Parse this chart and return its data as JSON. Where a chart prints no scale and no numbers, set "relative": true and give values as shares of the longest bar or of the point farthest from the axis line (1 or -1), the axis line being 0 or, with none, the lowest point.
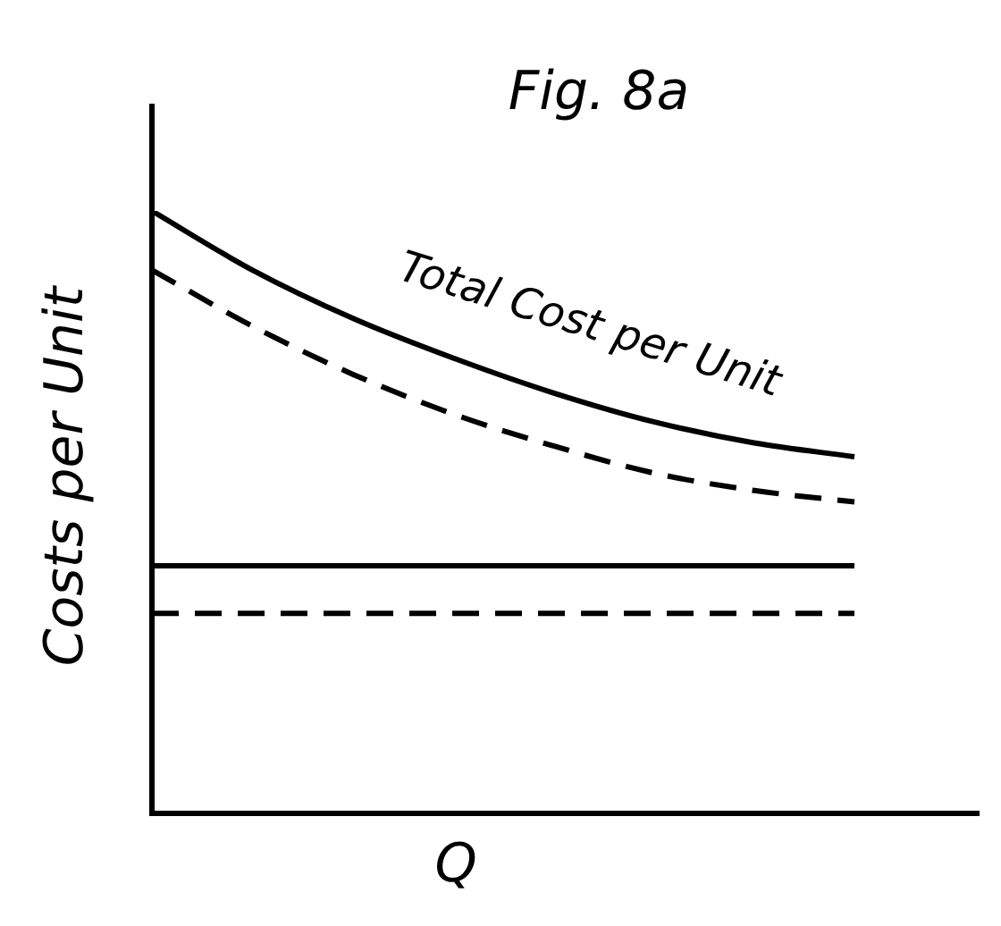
{
  "chart_data": {
    "type": "line",
    "title": "Fig. 8a",
    "xlabel": "Q",
    "ylabel": "Costs per Unit",
    "relative": true,
    "categories": [
      null,
      null,
      null,
      null,
      null,
      null,
      null,
      null
    ],
    "series": [
      {
        "name": "Total Cost per Unit",
        "color": "#000000",
        "line_style": "solid",
        "values": [
          1.0,
          0.902,
          0.822,
          0.756,
          0.698,
          0.65,
          0.615,
          0.592
        ]
      },
      {
        "color": "#000000",
        "line_style": "dashed",
        "values": [
          0.902,
          0.809,
          0.729,
          0.663,
          0.61,
          0.565,
          0.536,
          0.517
        ]
      },
      {
        "color": "#000000",
        "line_style": "solid",
        "values": [
          0.411,
          0.411,
          0.411,
          0.411,
          0.411,
          0.411,
          0.411,
          0.411
        ]
      },
      {
        "color": "#000000",
        "line_style": "dashed",
        "values": [
          0.332,
          0.332,
          0.332,
          0.332,
          0.332,
          0.332,
          0.332,
          0.332
        ]
      }
    ],
    "legend": false,
    "marker": "none",
    "tick_labels": false
  }
}
